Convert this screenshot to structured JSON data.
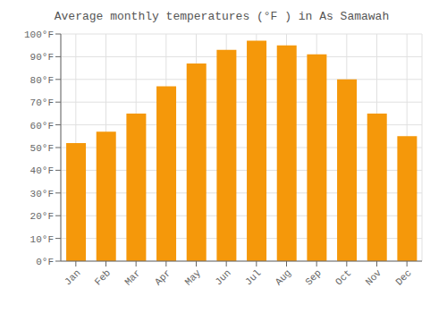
{
  "chart_data": {
    "type": "bar",
    "title": "Average monthly temperatures (°F ) in As Samawah",
    "categories": [
      "Jan",
      "Feb",
      "Mar",
      "Apr",
      "May",
      "Jun",
      "Jul",
      "Aug",
      "Sep",
      "Oct",
      "Nov",
      "Dec"
    ],
    "values": [
      52,
      57,
      65,
      77,
      87,
      93,
      97,
      95,
      91,
      80,
      65,
      55
    ],
    "color": "#F5980A",
    "ylim": [
      0,
      100
    ],
    "yticks": [
      {
        "value": 0,
        "label": "0°F"
      },
      {
        "value": 10,
        "label": "10°F"
      },
      {
        "value": 20,
        "label": "20°F"
      },
      {
        "value": 30,
        "label": "30°F"
      },
      {
        "value": 40,
        "label": "40°F"
      },
      {
        "value": 50,
        "label": "50°F"
      },
      {
        "value": 60,
        "label": "60°F"
      },
      {
        "value": 70,
        "label": "70°F"
      },
      {
        "value": 80,
        "label": "80°F"
      },
      {
        "value": 90,
        "label": "90°F"
      },
      {
        "value": 100,
        "label": "100°F"
      }
    ],
    "grid": true
  }
}
